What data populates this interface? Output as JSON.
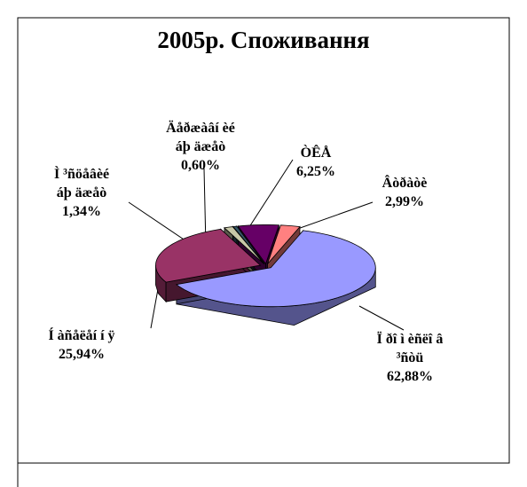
{
  "chart_data": {
    "type": "pie3d",
    "title": "2005р. Споживання",
    "categories": [
      "Ï ðî ì èñëî â\n³ñòü",
      "Í àñåëåí í ÿ",
      "Ì ³ñöåâèé\náþ äæåò",
      "Äåðæàâí èé\náþ äæåò",
      "ÒÊÅ",
      "Âòðàòè"
    ],
    "values": [
      62.88,
      25.94,
      1.34,
      0.6,
      6.25,
      2.99
    ],
    "value_labels": [
      "62,88%",
      "25,94%",
      "1,34%",
      "0,60%",
      "6,25%",
      "2,99%"
    ],
    "colors": [
      "#9999ff",
      "#993366",
      "#c8c8a8",
      "#335566",
      "#660066",
      "#ff8080"
    ]
  }
}
